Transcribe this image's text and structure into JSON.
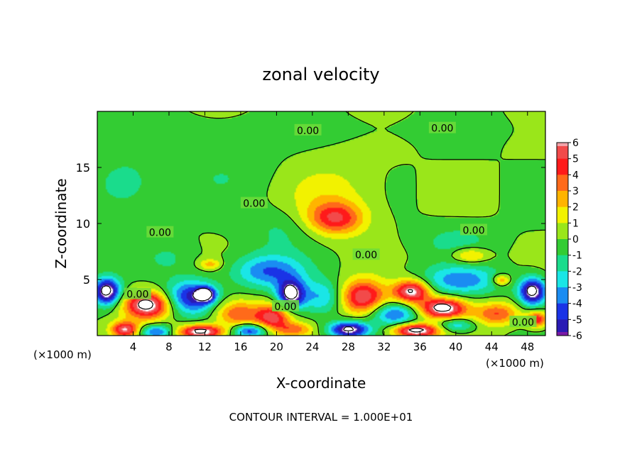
{
  "chart_data": {
    "type": "heatmap",
    "title": "zonal velocity",
    "xlabel": "X-coordinate",
    "ylabel": "Z-coordinate",
    "x_unit_label": "(×1000 m)",
    "x_unit_label_right": "(×1000 m)",
    "xlim": [
      0,
      50
    ],
    "ylim": [
      0,
      20
    ],
    "x_ticks": [
      4,
      8,
      12,
      16,
      20,
      24,
      28,
      32,
      36,
      40,
      44,
      48
    ],
    "y_ticks": [
      5,
      10,
      15
    ],
    "colorbar": {
      "ticks": [
        6,
        5,
        4,
        3,
        2,
        1,
        0,
        -1,
        -2,
        -3,
        -4,
        -5,
        -6
      ],
      "colors": [
        "#f2a2a8",
        "#f24a4a",
        "#ff1a1a",
        "#ff6a1a",
        "#ffb400",
        "#f2f200",
        "#9ae61a",
        "#33cc33",
        "#1adc8c",
        "#1ae6e6",
        "#1a8cf2",
        "#1a33e6",
        "#2a1ab4",
        "#7a1aa6"
      ]
    },
    "contour_interval_text": "CONTOUR INTERVAL = 1.000E+01",
    "contour_label": "0.00",
    "contour_labels": [
      {
        "text": "0.00",
        "x": 23.5,
        "z": 18.3
      },
      {
        "text": "0.00",
        "x": 38.5,
        "z": 18.5
      },
      {
        "text": "0.00",
        "x": 17.5,
        "z": 11.8
      },
      {
        "text": "0.00",
        "x": 7.0,
        "z": 9.2
      },
      {
        "text": "0.00",
        "x": 42.0,
        "z": 9.4
      },
      {
        "text": "0.00",
        "x": 30.0,
        "z": 7.2
      },
      {
        "text": "0.00",
        "x": 4.5,
        "z": 3.7
      },
      {
        "text": "0.00",
        "x": 21.0,
        "z": 2.6
      },
      {
        "text": "0.00",
        "x": 47.5,
        "z": 1.2
      }
    ],
    "features": [
      {
        "x": 2.0,
        "z": 18.5,
        "v": -0.6,
        "rx": 40,
        "rz": 1.2
      },
      {
        "x": 3.0,
        "z": 13.5,
        "v": -1.6,
        "rx": 3.5,
        "rz": 2.5
      },
      {
        "x": 14.0,
        "z": 14.5,
        "v": -0.8,
        "rx": 6,
        "rz": 2.5
      },
      {
        "x": 26.5,
        "z": 10.5,
        "v": 4.5,
        "rx": 3.0,
        "rz": 1.4
      },
      {
        "x": 26.0,
        "z": 12.5,
        "v": 1.5,
        "rx": 5,
        "rz": 3
      },
      {
        "x": 20.5,
        "z": 9.5,
        "v": -1.2,
        "rx": 4,
        "rz": 2
      },
      {
        "x": 41.5,
        "z": 7.2,
        "v": 3.0,
        "rx": 2,
        "rz": 0.7
      },
      {
        "x": 40.0,
        "z": 8.5,
        "v": -1.4,
        "rx": 4,
        "rz": 1.5
      },
      {
        "x": 12.5,
        "z": 6.4,
        "v": 2.5,
        "rx": 1.2,
        "rz": 0.5
      },
      {
        "x": 1.0,
        "z": 4.0,
        "v": -7.5,
        "rx": 1.5,
        "rz": 1.2
      },
      {
        "x": 5.5,
        "z": 2.8,
        "v": 7.5,
        "rx": 2.5,
        "rz": 1.2
      },
      {
        "x": 10.5,
        "z": 3.5,
        "v": -5.5,
        "rx": 2.8,
        "rz": 1.5
      },
      {
        "x": 12.0,
        "z": 3.7,
        "v": -7.0,
        "rx": 1.0,
        "rz": 0.6
      },
      {
        "x": 15.5,
        "z": 2.0,
        "v": 4.0,
        "rx": 2.5,
        "rz": 1.2
      },
      {
        "x": 19.5,
        "z": 1.7,
        "v": 5.5,
        "rx": 2.0,
        "rz": 1.2
      },
      {
        "x": 21.5,
        "z": 3.7,
        "v": -7.0,
        "rx": 1.5,
        "rz": 1.3
      },
      {
        "x": 19.0,
        "z": 5.8,
        "v": -4.0,
        "rx": 4,
        "rz": 1.5
      },
      {
        "x": 25.0,
        "z": 3.5,
        "v": -3.0,
        "rx": 2.5,
        "rz": 1.5
      },
      {
        "x": 29.5,
        "z": 3.5,
        "v": 6.0,
        "rx": 2.5,
        "rz": 1.5
      },
      {
        "x": 35.0,
        "z": 4.0,
        "v": 7.0,
        "rx": 2.0,
        "rz": 1.0
      },
      {
        "x": 33.0,
        "z": 2.0,
        "v": -4.0,
        "rx": 2.5,
        "rz": 1.0
      },
      {
        "x": 38.5,
        "z": 2.5,
        "v": 7.5,
        "rx": 2.5,
        "rz": 0.9
      },
      {
        "x": 40.5,
        "z": 5.0,
        "v": -3.5,
        "rx": 4.5,
        "rz": 1.3
      },
      {
        "x": 44.5,
        "z": 2.0,
        "v": 4.0,
        "rx": 2.5,
        "rz": 1.0
      },
      {
        "x": 48.5,
        "z": 4.0,
        "v": -7.5,
        "rx": 1.5,
        "rz": 1.2
      },
      {
        "x": 3.0,
        "z": 0.6,
        "v": 6.0,
        "rx": 1.5,
        "rz": 0.7
      },
      {
        "x": 6.5,
        "z": 0.4,
        "v": -4.5,
        "rx": 1.8,
        "rz": 0.6
      },
      {
        "x": 11.5,
        "z": 0.4,
        "v": 7.5,
        "rx": 2.5,
        "rz": 0.6
      },
      {
        "x": 17.0,
        "z": 0.5,
        "v": -5.0,
        "rx": 2.0,
        "rz": 0.6
      },
      {
        "x": 22.0,
        "z": 0.6,
        "v": 3.0,
        "rx": 2.0,
        "rz": 0.6
      },
      {
        "x": 28.0,
        "z": 0.6,
        "v": -7.0,
        "rx": 2.2,
        "rz": 0.7
      },
      {
        "x": 35.5,
        "z": 0.5,
        "v": 7.5,
        "rx": 2.5,
        "rz": 0.6
      },
      {
        "x": 40.0,
        "z": 1.0,
        "v": -3.0,
        "rx": 2.0,
        "rz": 0.6
      },
      {
        "x": 45.0,
        "z": 5.0,
        "v": 3.5,
        "rx": 1.0,
        "rz": 0.5
      },
      {
        "x": 49.0,
        "z": 1.5,
        "v": 5.0,
        "rx": 1.2,
        "rz": 0.7
      },
      {
        "x": 8.0,
        "z": 7.0,
        "v": -1.0,
        "rx": 3,
        "rz": 1.5
      }
    ]
  }
}
